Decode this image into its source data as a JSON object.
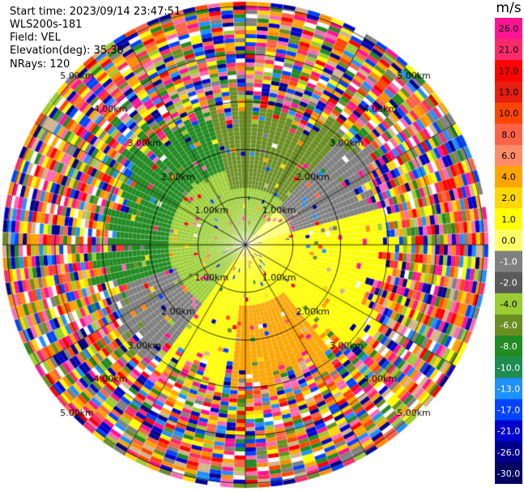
{
  "header": {
    "start_time": "Start time: 2023/09/14 23:47:51",
    "instrument": "WLS200s-181",
    "field": "Field: VEL",
    "elevation": "Elevation(deg): 35.30",
    "nrays": "NRays: 120"
  },
  "plot": {
    "range_rings_km": [
      1.0,
      2.0,
      3.0,
      4.0,
      5.0
    ],
    "ring_label_suffix": "km",
    "max_range_km": 5.1,
    "num_rays": 120
  },
  "colorbar": {
    "unit": "m/s",
    "ticks": [
      "26.0",
      "21.0",
      "17.0",
      "13.0",
      "10.0",
      "8.0",
      "6.0",
      "4.0",
      "2.0",
      "1.0",
      "0.0",
      "-1.0",
      "-2.0",
      "-4.0",
      "-6.0",
      "-8.0",
      "-10.0",
      "-13.0",
      "-17.0",
      "-21.0",
      "-26.0",
      "-30.0"
    ],
    "colors": [
      "#ff1493",
      "#ff2a6a",
      "#ff0000",
      "#e81e10",
      "#ff4500",
      "#ff6347",
      "#ff8c69",
      "#ffa500",
      "#ffd700",
      "#ffff00",
      "#ffff66",
      "#808080",
      "#5a5a5a",
      "#9acd32",
      "#6b8e23",
      "#228b22",
      "#1e8b50",
      "#1e90ff",
      "#0044ff",
      "#0000cd",
      "#00008b",
      "#000060"
    ]
  }
}
